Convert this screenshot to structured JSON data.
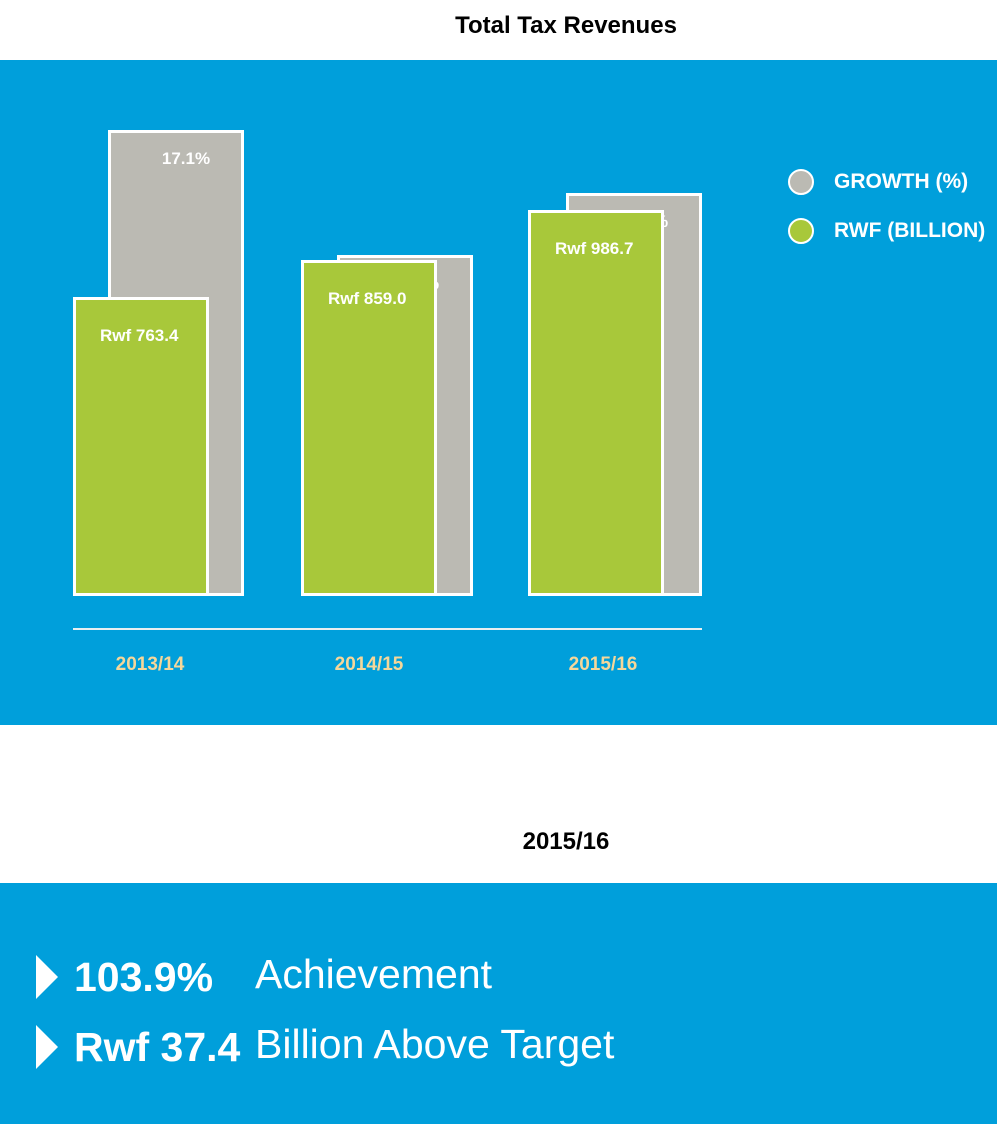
{
  "title": "Total Tax Revenues",
  "chart_data": {
    "type": "bar",
    "categories": [
      "2013/14",
      "2014/15",
      "2015/16"
    ],
    "series": [
      {
        "name": "GROWTH (%)",
        "values": [
          17.1,
          12.5,
          14.8
        ],
        "labels": [
          "17.1%",
          "12.5%",
          "14.8%"
        ],
        "color": "#bbbab3"
      },
      {
        "name": "RWF (BILLION)",
        "values": [
          763.4,
          859.0,
          986.7
        ],
        "labels": [
          "Rwf 763.4",
          "Rwf 859.0",
          "Rwf 986.7"
        ],
        "color": "#a8c83a"
      }
    ],
    "legend": [
      "GROWTH (%)",
      "RWF (BILLION)"
    ],
    "legend_position": "right",
    "grid": false
  },
  "summary": {
    "year": "2015/16",
    "stats": [
      {
        "value": "103.9%",
        "desc": "Achievement"
      },
      {
        "value": "Rwf 37.4",
        "desc": "Billion Above Target"
      }
    ]
  },
  "colors": {
    "panel": "#009fdb",
    "growth": "#bbbab3",
    "rwf": "#a8c83a",
    "category_label": "#f5d79a"
  }
}
